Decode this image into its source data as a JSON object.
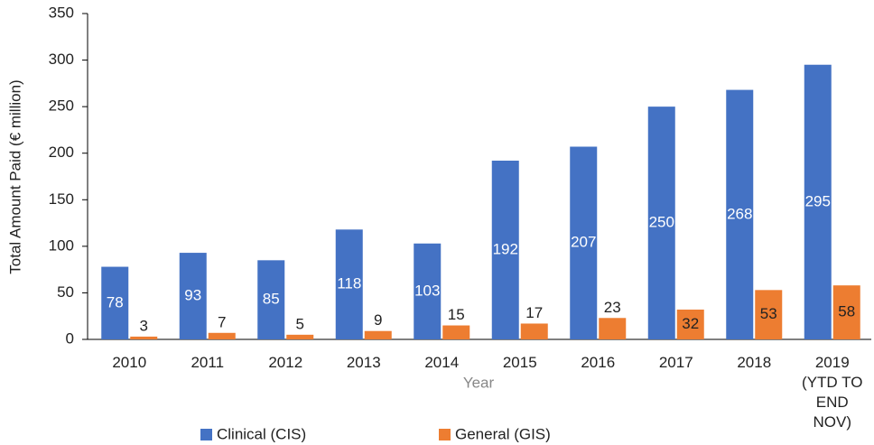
{
  "chart_data": {
    "type": "bar",
    "x_label": "Year",
    "y_label": "Total Amount Paid (€ million)",
    "categories": [
      "2010",
      "2011",
      "2012",
      "2013",
      "2014",
      "2015",
      "2016",
      "2017",
      "2018",
      "2019 (YTD TO END NOV)"
    ],
    "series": [
      {
        "name": "Clinical (CIS)",
        "color": "#4472c4",
        "values": [
          78,
          93,
          85,
          118,
          103,
          192,
          207,
          250,
          268,
          295
        ]
      },
      {
        "name": "General (GIS)",
        "color": "#ed7d31",
        "values": [
          3,
          7,
          5,
          9,
          15,
          17,
          23,
          32,
          53,
          58
        ]
      }
    ],
    "ylim": [
      0,
      350
    ],
    "yticks": [
      0,
      50,
      100,
      150,
      200,
      250,
      300,
      350
    ],
    "grid": false,
    "legend": "bottom"
  }
}
